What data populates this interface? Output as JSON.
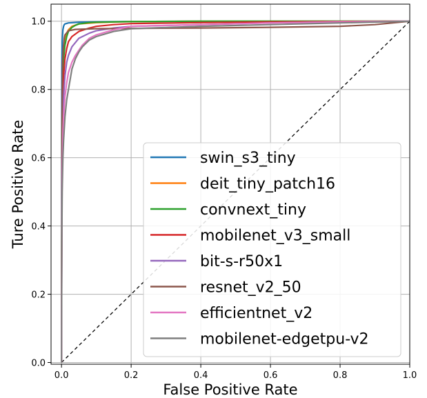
{
  "chart_data": {
    "type": "line",
    "title": "",
    "xlabel": "False Positive Rate",
    "ylabel": "Ture Positive Rate",
    "xlim": [
      -0.03,
      1.0
    ],
    "ylim": [
      -0.005,
      1.05
    ],
    "xticks": [
      "0.0",
      "0.2",
      "0.4",
      "0.6",
      "0.8",
      "1.0"
    ],
    "yticks": [
      "0.0",
      "0.2",
      "0.4",
      "0.6",
      "0.8",
      "1.0"
    ],
    "grid": true,
    "legend_position": "lower-right",
    "reference_line": {
      "style": "dashed",
      "color": "#000000",
      "x": [
        0,
        1
      ],
      "y": [
        0,
        1
      ]
    },
    "series": [
      {
        "name": "swin_s3_tiny",
        "color": "#1f77b4",
        "x": [
          0,
          0.0005,
          0.001,
          0.002,
          0.004,
          0.006,
          0.008,
          0.01,
          0.02,
          0.05,
          0.1,
          0.2,
          0.4,
          0.6,
          0.8,
          1.0
        ],
        "y": [
          0,
          0.6,
          0.86,
          0.94,
          0.975,
          0.985,
          0.99,
          0.992,
          0.995,
          0.997,
          0.998,
          0.999,
          1.0,
          1.0,
          1.0,
          1.0
        ]
      },
      {
        "name": "deit_tiny_patch16",
        "color": "#ff7f0e",
        "x": [
          0,
          0.001,
          0.002,
          0.004,
          0.006,
          0.01,
          0.015,
          0.02,
          0.03,
          0.05,
          0.1,
          0.2,
          0.4,
          0.6,
          0.8,
          1.0
        ],
        "y": [
          0,
          0.55,
          0.78,
          0.88,
          0.92,
          0.95,
          0.965,
          0.975,
          0.985,
          0.992,
          0.996,
          0.999,
          1.0,
          1.0,
          1.0,
          1.0
        ]
      },
      {
        "name": "convnext_tiny",
        "color": "#2ca02c",
        "x": [
          0,
          0.001,
          0.002,
          0.004,
          0.006,
          0.01,
          0.015,
          0.02,
          0.03,
          0.04,
          0.05,
          0.08,
          0.1,
          0.2,
          0.4,
          0.6,
          0.8,
          1.0
        ],
        "y": [
          0,
          0.5,
          0.72,
          0.84,
          0.89,
          0.93,
          0.955,
          0.97,
          0.982,
          0.988,
          0.992,
          0.996,
          0.997,
          0.999,
          1.0,
          1.0,
          1.0,
          1.0
        ]
      },
      {
        "name": "mobilenet_v3_small",
        "color": "#d62728",
        "x": [
          0,
          0.001,
          0.002,
          0.004,
          0.006,
          0.01,
          0.015,
          0.02,
          0.03,
          0.05,
          0.08,
          0.1,
          0.15,
          0.2,
          0.4,
          0.6,
          0.8,
          1.0
        ],
        "y": [
          0,
          0.45,
          0.66,
          0.78,
          0.84,
          0.89,
          0.92,
          0.94,
          0.955,
          0.97,
          0.98,
          0.985,
          0.99,
          0.993,
          0.996,
          0.998,
          0.999,
          1.0
        ]
      },
      {
        "name": "bit-s-r50x1",
        "color": "#9467bd",
        "x": [
          0,
          0.001,
          0.002,
          0.004,
          0.006,
          0.01,
          0.015,
          0.02,
          0.03,
          0.05,
          0.08,
          0.1,
          0.15,
          0.2,
          0.4,
          0.6,
          0.8,
          1.0
        ],
        "y": [
          0,
          0.42,
          0.6,
          0.72,
          0.78,
          0.84,
          0.88,
          0.9,
          0.925,
          0.95,
          0.965,
          0.972,
          0.98,
          0.985,
          0.99,
          0.995,
          0.998,
          1.0
        ]
      },
      {
        "name": "resnet_v2_50",
        "color": "#8c564b",
        "x": [
          0,
          0.001,
          0.002,
          0.003,
          0.005,
          0.008,
          0.01,
          0.02,
          0.04,
          0.1,
          0.2,
          0.4,
          0.6,
          0.8,
          0.9,
          1.0
        ],
        "y": [
          0,
          0.6,
          0.8,
          0.88,
          0.92,
          0.95,
          0.96,
          0.972,
          0.976,
          0.978,
          0.979,
          0.98,
          0.982,
          0.985,
          0.99,
          1.0
        ]
      },
      {
        "name": "efficientnet_v2",
        "color": "#e377c2",
        "x": [
          0,
          0.001,
          0.002,
          0.004,
          0.006,
          0.01,
          0.015,
          0.02,
          0.03,
          0.04,
          0.05,
          0.06,
          0.08,
          0.1,
          0.15,
          0.2,
          0.4,
          0.6,
          0.8,
          1.0
        ],
        "y": [
          0,
          0.4,
          0.56,
          0.67,
          0.72,
          0.78,
          0.82,
          0.85,
          0.88,
          0.9,
          0.915,
          0.93,
          0.95,
          0.96,
          0.975,
          0.985,
          0.99,
          0.995,
          0.998,
          1.0
        ]
      },
      {
        "name": "mobilenet-edgetpu-v2",
        "color": "#7f7f7f",
        "x": [
          0,
          0.001,
          0.002,
          0.004,
          0.006,
          0.01,
          0.015,
          0.02,
          0.03,
          0.04,
          0.05,
          0.06,
          0.08,
          0.1,
          0.15,
          0.2,
          0.4,
          0.6,
          0.8,
          1.0
        ],
        "y": [
          0,
          0.36,
          0.5,
          0.6,
          0.65,
          0.72,
          0.77,
          0.8,
          0.86,
          0.89,
          0.91,
          0.925,
          0.945,
          0.955,
          0.97,
          0.978,
          0.985,
          0.99,
          0.995,
          1.0
        ]
      }
    ]
  }
}
